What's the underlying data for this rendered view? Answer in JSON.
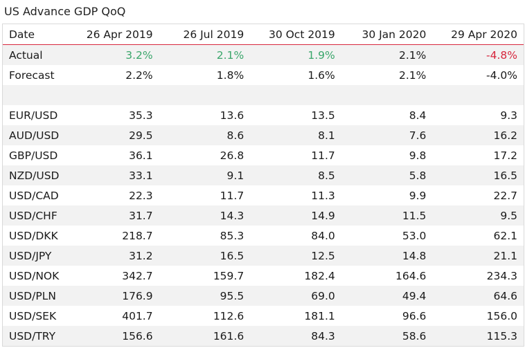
{
  "title": "US Advance GDP QoQ",
  "header": [
    "Date",
    "26 Apr 2019",
    "26 Jul 2019",
    "30 Oct 2019",
    "30 Jan 2020",
    "29 Apr 2020"
  ],
  "actual": {
    "label": "Actual",
    "values": [
      "3.2%",
      "2.1%",
      "1.9%",
      "2.1%",
      "-4.8%"
    ],
    "colors": [
      "up",
      "up",
      "up",
      "neutral",
      "down"
    ]
  },
  "forecast": {
    "label": "Forecast",
    "values": [
      "2.2%",
      "1.8%",
      "1.6%",
      "2.1%",
      "-4.0%"
    ]
  },
  "pairs": [
    {
      "label": "EUR/USD",
      "values": [
        "35.3",
        "13.6",
        "13.5",
        "8.4",
        "9.3"
      ]
    },
    {
      "label": "AUD/USD",
      "values": [
        "29.5",
        "8.6",
        "8.1",
        "7.6",
        "16.2"
      ]
    },
    {
      "label": "GBP/USD",
      "values": [
        "36.1",
        "26.8",
        "11.7",
        "9.8",
        "17.2"
      ]
    },
    {
      "label": "NZD/USD",
      "values": [
        "33.1",
        "9.1",
        "8.5",
        "5.8",
        "16.5"
      ]
    },
    {
      "label": "USD/CAD",
      "values": [
        "22.3",
        "11.7",
        "11.3",
        "9.9",
        "22.7"
      ]
    },
    {
      "label": "USD/CHF",
      "values": [
        "31.7",
        "14.3",
        "14.9",
        "11.5",
        "9.5"
      ]
    },
    {
      "label": "USD/DKK",
      "values": [
        "218.7",
        "85.3",
        "84.0",
        "53.0",
        "62.1"
      ]
    },
    {
      "label": "USD/JPY",
      "values": [
        "31.2",
        "16.5",
        "12.5",
        "14.8",
        "21.1"
      ]
    },
    {
      "label": "USD/NOK",
      "values": [
        "342.7",
        "159.7",
        "182.4",
        "164.6",
        "234.3"
      ]
    },
    {
      "label": "USD/PLN",
      "values": [
        "176.9",
        "95.5",
        "69.0",
        "49.4",
        "64.6"
      ]
    },
    {
      "label": "USD/SEK",
      "values": [
        "401.7",
        "112.6",
        "181.1",
        "96.6",
        "156.0"
      ]
    },
    {
      "label": "USD/TRY",
      "values": [
        "156.6",
        "161.6",
        "84.3",
        "58.6",
        "115.3"
      ]
    }
  ],
  "colors": {
    "up": "#3aa66b",
    "down": "#d7263d",
    "header_rule": "#d7263d",
    "row_shade": "#f2f2f2"
  }
}
